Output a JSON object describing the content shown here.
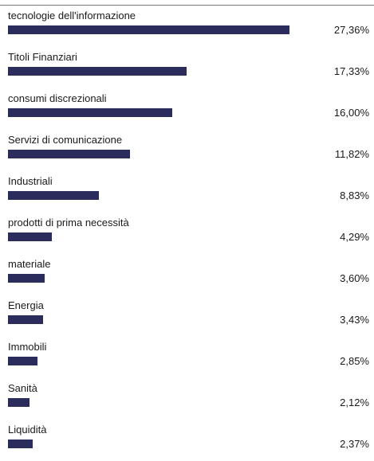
{
  "chart_data": {
    "type": "bar",
    "orientation": "horizontal",
    "categories": [
      "tecnologie dell'informazione",
      "Titoli Finanziari",
      "consumi discrezionali",
      "Servizi di comunicazione",
      "Industriali",
      "prodotti di prima necessità",
      "materiale",
      "Energia",
      "Immobili",
      "Sanità",
      "Liquidità"
    ],
    "values": [
      27.36,
      17.33,
      16.0,
      11.82,
      8.83,
      4.29,
      3.6,
      3.43,
      2.85,
      2.12,
      2.37
    ],
    "value_labels": [
      "27,36%",
      "17,33%",
      "16,00%",
      "11,82%",
      "8,83%",
      "4,29%",
      "3,60%",
      "3,43%",
      "2,85%",
      "2,12%",
      "2,37%"
    ],
    "bar_color": "#2b2b5c",
    "grid": false,
    "legend": "none"
  }
}
